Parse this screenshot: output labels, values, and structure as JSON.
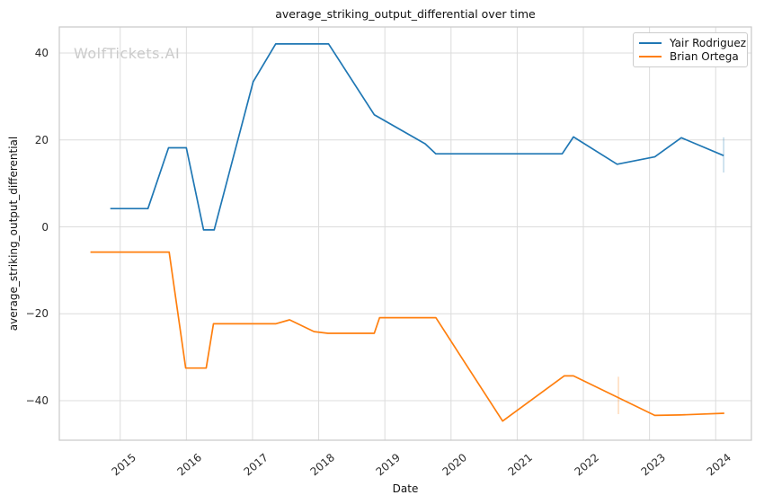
{
  "watermark": "WolfTickets.AI",
  "chart_data": {
    "type": "line",
    "title": "average_striking_output_differential over time",
    "xlabel": "Date",
    "ylabel": "average_striking_output_differential",
    "xlim": [
      2014.08,
      2024.54
    ],
    "ylim": [
      -49.1,
      46.0
    ],
    "grid": true,
    "legend_position": "upper right",
    "x_ticks": {
      "values": [
        2015,
        2016,
        2017,
        2018,
        2019,
        2020,
        2021,
        2022,
        2023,
        2024
      ],
      "labels": [
        "2015",
        "2016",
        "2017",
        "2018",
        "2019",
        "2020",
        "2021",
        "2022",
        "2023",
        "2024"
      ]
    },
    "y_ticks": {
      "values": [
        40,
        20,
        0,
        -20,
        -40
      ],
      "labels": [
        "40",
        "20",
        "0",
        "−20",
        "−40"
      ]
    },
    "series": [
      {
        "name": "Yair Rodriguez",
        "color": "#1f77b4",
        "points": [
          [
            2014.85,
            4.2
          ],
          [
            2015.42,
            4.2
          ],
          [
            2015.73,
            18.2
          ],
          [
            2016.0,
            18.2
          ],
          [
            2016.26,
            -0.7
          ],
          [
            2016.42,
            -0.7
          ],
          [
            2017.01,
            33.4
          ],
          [
            2017.35,
            42.1
          ],
          [
            2018.15,
            42.1
          ],
          [
            2018.84,
            25.8
          ],
          [
            2019.61,
            19.1
          ],
          [
            2019.77,
            16.8
          ],
          [
            2021.68,
            16.8
          ],
          [
            2021.85,
            20.7
          ],
          [
            2022.51,
            14.4
          ],
          [
            2023.08,
            16.1
          ],
          [
            2023.48,
            20.5
          ],
          [
            2024.12,
            16.4
          ]
        ]
      },
      {
        "name": "Brian Ortega",
        "color": "#ff7f0e",
        "points": [
          [
            2014.55,
            -5.8
          ],
          [
            2015.74,
            -5.8
          ],
          [
            2015.99,
            -32.5
          ],
          [
            2016.3,
            -32.5
          ],
          [
            2016.41,
            -22.3
          ],
          [
            2017.35,
            -22.3
          ],
          [
            2017.56,
            -21.4
          ],
          [
            2017.93,
            -24.1
          ],
          [
            2018.14,
            -24.5
          ],
          [
            2018.84,
            -24.5
          ],
          [
            2018.92,
            -20.9
          ],
          [
            2019.77,
            -20.9
          ],
          [
            2020.78,
            -44.7
          ],
          [
            2021.71,
            -34.3
          ],
          [
            2021.85,
            -34.3
          ],
          [
            2023.08,
            -43.4
          ],
          [
            2023.46,
            -43.3
          ],
          [
            2024.13,
            -42.9
          ]
        ]
      }
    ],
    "error_bars": [
      {
        "series": "Yair Rodriguez",
        "x": 2024.12,
        "y_min": 12.5,
        "y_max": 20.6,
        "color": "#1f77b44d"
      },
      {
        "series": "Brian Ortega",
        "x": 2022.53,
        "y_min": -43.1,
        "y_max": -34.5,
        "color": "#ff7f0e4d"
      }
    ],
    "colors": {
      "grid": "#dcdcdc",
      "spine": "#c9c9c9"
    }
  }
}
